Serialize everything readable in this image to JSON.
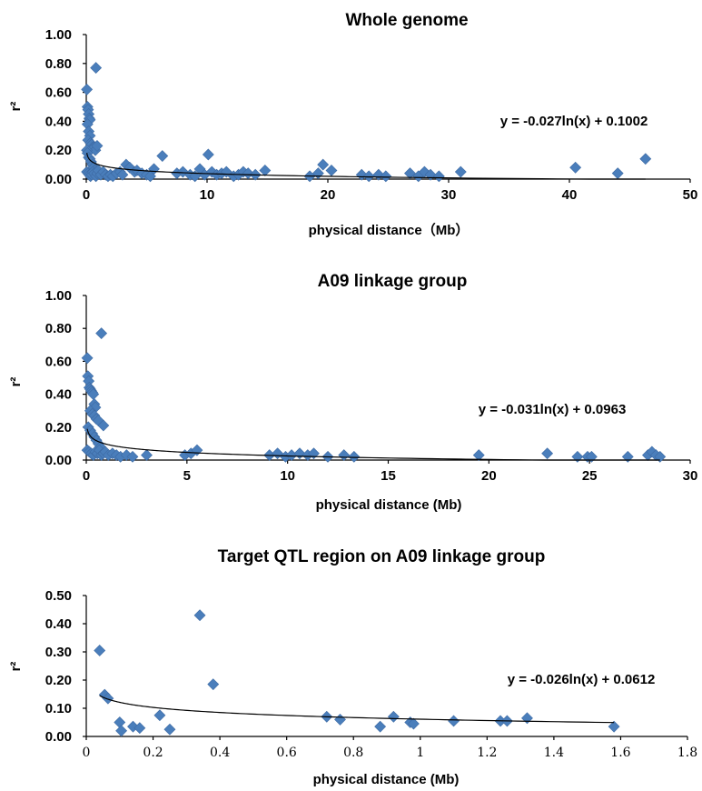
{
  "chart_data": [
    {
      "type": "scatter",
      "title": "Whole genome",
      "xlabel": "physical distance（Mb）",
      "ylabel": "r²",
      "xlim": [
        0,
        50
      ],
      "ylim": [
        0,
        1.0
      ],
      "x_ticks": [
        "0",
        "10",
        "20",
        "30",
        "40",
        "50"
      ],
      "y_ticks": [
        "0.00",
        "0.20",
        "0.40",
        "0.60",
        "0.80",
        "1.00"
      ],
      "grid": false,
      "marker_color": "#4a7ebb",
      "trendline": {
        "type": "logarithmic",
        "a": -0.027,
        "b": 0.1002,
        "equation": "y = -0.027ln(x) + 0.1002"
      },
      "points": [
        [
          0.05,
          0.62
        ],
        [
          0.1,
          0.5
        ],
        [
          0.15,
          0.48
        ],
        [
          0.2,
          0.45
        ],
        [
          0.25,
          0.42
        ],
        [
          0.3,
          0.41
        ],
        [
          0.1,
          0.38
        ],
        [
          0.2,
          0.33
        ],
        [
          0.3,
          0.3
        ],
        [
          0.15,
          0.27
        ],
        [
          0.35,
          0.25
        ],
        [
          0.45,
          0.24
        ],
        [
          0.55,
          0.22
        ],
        [
          0.65,
          0.22
        ],
        [
          0.75,
          0.2
        ],
        [
          0.8,
          0.77
        ],
        [
          0.9,
          0.23
        ],
        [
          0.05,
          0.2
        ],
        [
          0.1,
          0.18
        ],
        [
          0.2,
          0.15
        ],
        [
          0.3,
          0.14
        ],
        [
          0.4,
          0.12
        ],
        [
          0.5,
          0.1
        ],
        [
          0.6,
          0.08
        ],
        [
          0.7,
          0.06
        ],
        [
          0.05,
          0.05
        ],
        [
          0.15,
          0.04
        ],
        [
          0.25,
          0.03
        ],
        [
          0.35,
          0.02
        ],
        [
          0.45,
          0.03
        ],
        [
          0.55,
          0.05
        ],
        [
          0.65,
          0.04
        ],
        [
          0.8,
          0.02
        ],
        [
          0.9,
          0.04
        ],
        [
          1.0,
          0.06
        ],
        [
          1.2,
          0.03
        ],
        [
          1.4,
          0.05
        ],
        [
          1.6,
          0.03
        ],
        [
          1.8,
          0.02
        ],
        [
          2.0,
          0.03
        ],
        [
          2.2,
          0.02
        ],
        [
          2.5,
          0.04
        ],
        [
          2.8,
          0.05
        ],
        [
          3.0,
          0.03
        ],
        [
          3.3,
          0.1
        ],
        [
          3.6,
          0.08
        ],
        [
          4.0,
          0.05
        ],
        [
          4.2,
          0.06
        ],
        [
          4.6,
          0.04
        ],
        [
          5.0,
          0.03
        ],
        [
          5.3,
          0.02
        ],
        [
          5.6,
          0.07
        ],
        [
          6.3,
          0.16
        ],
        [
          7.5,
          0.04
        ],
        [
          8.0,
          0.05
        ],
        [
          8.6,
          0.03
        ],
        [
          9.0,
          0.02
        ],
        [
          9.4,
          0.07
        ],
        [
          9.8,
          0.03
        ],
        [
          10.1,
          0.17
        ],
        [
          10.4,
          0.05
        ],
        [
          10.8,
          0.03
        ],
        [
          11.2,
          0.04
        ],
        [
          11.6,
          0.05
        ],
        [
          12.2,
          0.02
        ],
        [
          12.6,
          0.03
        ],
        [
          13.0,
          0.05
        ],
        [
          13.4,
          0.04
        ],
        [
          14.0,
          0.03
        ],
        [
          14.8,
          0.06
        ],
        [
          18.5,
          0.02
        ],
        [
          19.2,
          0.04
        ],
        [
          19.6,
          0.1
        ],
        [
          20.3,
          0.06
        ],
        [
          22.8,
          0.03
        ],
        [
          23.4,
          0.02
        ],
        [
          24.2,
          0.03
        ],
        [
          24.8,
          0.02
        ],
        [
          26.8,
          0.04
        ],
        [
          27.5,
          0.02
        ],
        [
          28.0,
          0.05
        ],
        [
          28.5,
          0.03
        ],
        [
          29.2,
          0.02
        ],
        [
          31.0,
          0.05
        ],
        [
          40.5,
          0.08
        ],
        [
          44.0,
          0.04
        ],
        [
          46.3,
          0.14
        ]
      ]
    },
    {
      "type": "scatter",
      "title": "A09 linkage group",
      "xlabel": "physical distance (Mb)",
      "ylabel": "r²",
      "xlim": [
        0,
        30
      ],
      "ylim": [
        0,
        1.0
      ],
      "x_ticks": [
        "0",
        "5",
        "10",
        "15",
        "20",
        "25",
        "30"
      ],
      "y_ticks": [
        "0.00",
        "0.20",
        "0.40",
        "0.60",
        "0.80",
        "1.00"
      ],
      "grid": false,
      "marker_color": "#4a7ebb",
      "trendline": {
        "type": "logarithmic",
        "a": -0.031,
        "b": 0.0963,
        "equation": "y = -0.031ln(x) + 0.0963"
      },
      "points": [
        [
          0.05,
          0.62
        ],
        [
          0.08,
          0.51
        ],
        [
          0.12,
          0.48
        ],
        [
          0.15,
          0.44
        ],
        [
          0.2,
          0.43
        ],
        [
          0.25,
          0.42
        ],
        [
          0.3,
          0.41
        ],
        [
          0.35,
          0.4
        ],
        [
          0.4,
          0.34
        ],
        [
          0.45,
          0.32
        ],
        [
          0.2,
          0.3
        ],
        [
          0.3,
          0.28
        ],
        [
          0.4,
          0.27
        ],
        [
          0.5,
          0.25
        ],
        [
          0.6,
          0.24
        ],
        [
          0.75,
          0.77
        ],
        [
          0.85,
          0.21
        ],
        [
          0.1,
          0.2
        ],
        [
          0.2,
          0.18
        ],
        [
          0.3,
          0.16
        ],
        [
          0.4,
          0.14
        ],
        [
          0.5,
          0.12
        ],
        [
          0.6,
          0.1
        ],
        [
          0.7,
          0.08
        ],
        [
          0.05,
          0.06
        ],
        [
          0.15,
          0.05
        ],
        [
          0.25,
          0.04
        ],
        [
          0.35,
          0.03
        ],
        [
          0.45,
          0.05
        ],
        [
          0.55,
          0.04
        ],
        [
          0.65,
          0.06
        ],
        [
          0.75,
          0.03
        ],
        [
          0.85,
          0.04
        ],
        [
          0.95,
          0.05
        ],
        [
          1.1,
          0.03
        ],
        [
          1.3,
          0.04
        ],
        [
          1.5,
          0.03
        ],
        [
          1.7,
          0.02
        ],
        [
          2.0,
          0.03
        ],
        [
          2.3,
          0.02
        ],
        [
          3.0,
          0.03
        ],
        [
          4.9,
          0.03
        ],
        [
          5.2,
          0.04
        ],
        [
          5.5,
          0.06
        ],
        [
          9.1,
          0.03
        ],
        [
          9.5,
          0.04
        ],
        [
          9.9,
          0.02
        ],
        [
          10.2,
          0.03
        ],
        [
          10.6,
          0.04
        ],
        [
          11.0,
          0.03
        ],
        [
          11.3,
          0.04
        ],
        [
          12.0,
          0.02
        ],
        [
          12.8,
          0.03
        ],
        [
          13.3,
          0.02
        ],
        [
          19.5,
          0.03
        ],
        [
          22.9,
          0.04
        ],
        [
          24.4,
          0.02
        ],
        [
          24.9,
          0.02
        ],
        [
          25.1,
          0.02
        ],
        [
          26.9,
          0.02
        ],
        [
          27.9,
          0.03
        ],
        [
          28.1,
          0.05
        ],
        [
          28.3,
          0.03
        ],
        [
          28.5,
          0.02
        ]
      ]
    },
    {
      "type": "scatter",
      "title": "Target QTL region on A09 linkage group",
      "xlabel": "physical distance (Mb)",
      "ylabel": "r²",
      "xlim": [
        0,
        1.8
      ],
      "ylim": [
        0,
        0.5
      ],
      "x_ticks": [
        "0",
        "0.2",
        "0.4",
        "0.6",
        "0.8",
        "1",
        "1.2",
        "1.4",
        "1.6",
        "1.8"
      ],
      "x_ticks_display": [
        "0",
        "0.2",
        "0.4",
        "0.6",
        "0.8",
        "1",
        "1.2",
        "1.4",
        "1.6",
        "1.8"
      ],
      "y_ticks": [
        "0.00",
        "0.10",
        "0.20",
        "0.30",
        "0.40",
        "0.50"
      ],
      "grid": false,
      "marker_color": "#4a7ebb",
      "trendline": {
        "type": "logarithmic",
        "a": -0.026,
        "b": 0.0612,
        "equation": "y = -0.026ln(x) + 0.0612"
      },
      "points": [
        [
          0.04,
          0.305
        ],
        [
          0.055,
          0.148
        ],
        [
          0.065,
          0.135
        ],
        [
          0.1,
          0.05
        ],
        [
          0.105,
          0.02
        ],
        [
          0.14,
          0.035
        ],
        [
          0.16,
          0.03
        ],
        [
          0.22,
          0.075
        ],
        [
          0.25,
          0.025
        ],
        [
          0.34,
          0.43
        ],
        [
          0.38,
          0.185
        ],
        [
          0.72,
          0.07
        ],
        [
          0.76,
          0.06
        ],
        [
          0.88,
          0.035
        ],
        [
          0.92,
          0.07
        ],
        [
          0.97,
          0.05
        ],
        [
          0.98,
          0.045
        ],
        [
          1.1,
          0.055
        ],
        [
          1.24,
          0.055
        ],
        [
          1.26,
          0.055
        ],
        [
          1.32,
          0.065
        ],
        [
          1.58,
          0.035
        ]
      ]
    }
  ]
}
